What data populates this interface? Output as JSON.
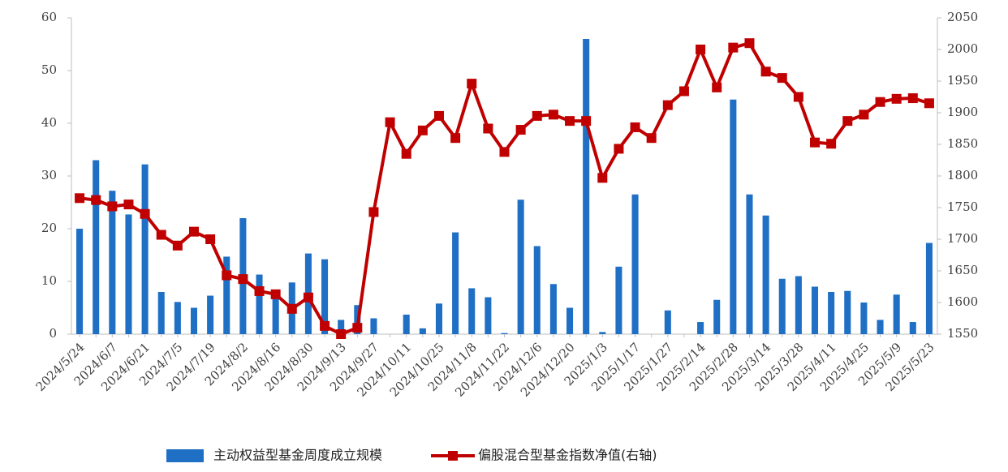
{
  "chart_data": {
    "type": "bar",
    "categories": [
      "2024/5/24",
      null,
      "2024/6/7",
      null,
      "2024/6/21",
      null,
      "2024/7/5",
      null,
      "2024/7/19",
      null,
      "2024/8/2",
      null,
      "2024/8/16",
      null,
      "2024/8/30",
      null,
      "2024/9/13",
      null,
      "2024/9/27",
      null,
      "2024/10/11",
      null,
      "2024/10/25",
      null,
      "2024/11/8",
      null,
      "2024/11/22",
      null,
      "2024/12/6",
      null,
      "2024/12/20",
      null,
      "2025/1/3",
      null,
      "2025/1/17",
      null,
      "2025/1/27",
      null,
      "2025/2/14",
      null,
      "2025/2/28",
      null,
      "2025/3/14",
      null,
      "2025/3/28",
      null,
      "2025/4/11",
      null,
      "2025/4/25",
      null,
      "2025/5/9",
      null,
      "2025/5/23"
    ],
    "series": [
      {
        "name": "主动权益型基金周度成立规模",
        "type": "bar",
        "color": "#1f6fc5",
        "values": [
          20,
          33,
          27.2,
          22.7,
          32.2,
          8,
          6.1,
          5,
          7.3,
          14.7,
          22,
          11.3,
          8,
          9.8,
          15.3,
          14.2,
          2.7,
          5.5,
          3,
          0,
          3.7,
          1.1,
          5.8,
          19.3,
          8.7,
          7,
          0.2,
          25.5,
          16.7,
          9.5,
          5,
          56,
          0.4,
          12.8,
          26.5,
          0,
          4.5,
          0,
          2.3,
          6.5,
          44.5,
          26.5,
          22.5,
          10.5,
          11,
          9,
          8,
          8.2,
          6,
          2.7,
          7.5,
          2.3,
          17.3
        ]
      },
      {
        "name": "偏股混合型基金指数净值(右轴)",
        "type": "line",
        "axis": "y2",
        "color": "#c00000",
        "values": [
          1765,
          1762,
          1752,
          1755,
          1740,
          1707,
          1690,
          1712,
          1700,
          1643,
          1637,
          1618,
          1613,
          1590,
          1608,
          1563,
          1550,
          1560,
          1743,
          1885,
          1835,
          1872,
          1895,
          1860,
          1946,
          1875,
          1838,
          1873,
          1895,
          1897,
          1887,
          1887,
          1797,
          1843,
          1877,
          1860,
          1912,
          1934,
          2000,
          1940,
          2003,
          2010,
          1965,
          1955,
          1925,
          1853,
          1851,
          1887,
          1897,
          1917,
          1922,
          1923,
          1915
        ]
      }
    ],
    "ylim": [
      0,
      60
    ],
    "yticks": [
      0,
      10,
      20,
      30,
      40,
      50,
      60
    ],
    "y2lim": [
      1550,
      2050
    ],
    "y2ticks": [
      1550,
      1600,
      1650,
      1700,
      1750,
      1800,
      1850,
      1900,
      1950,
      2000,
      2050
    ],
    "legend": "bottom"
  }
}
